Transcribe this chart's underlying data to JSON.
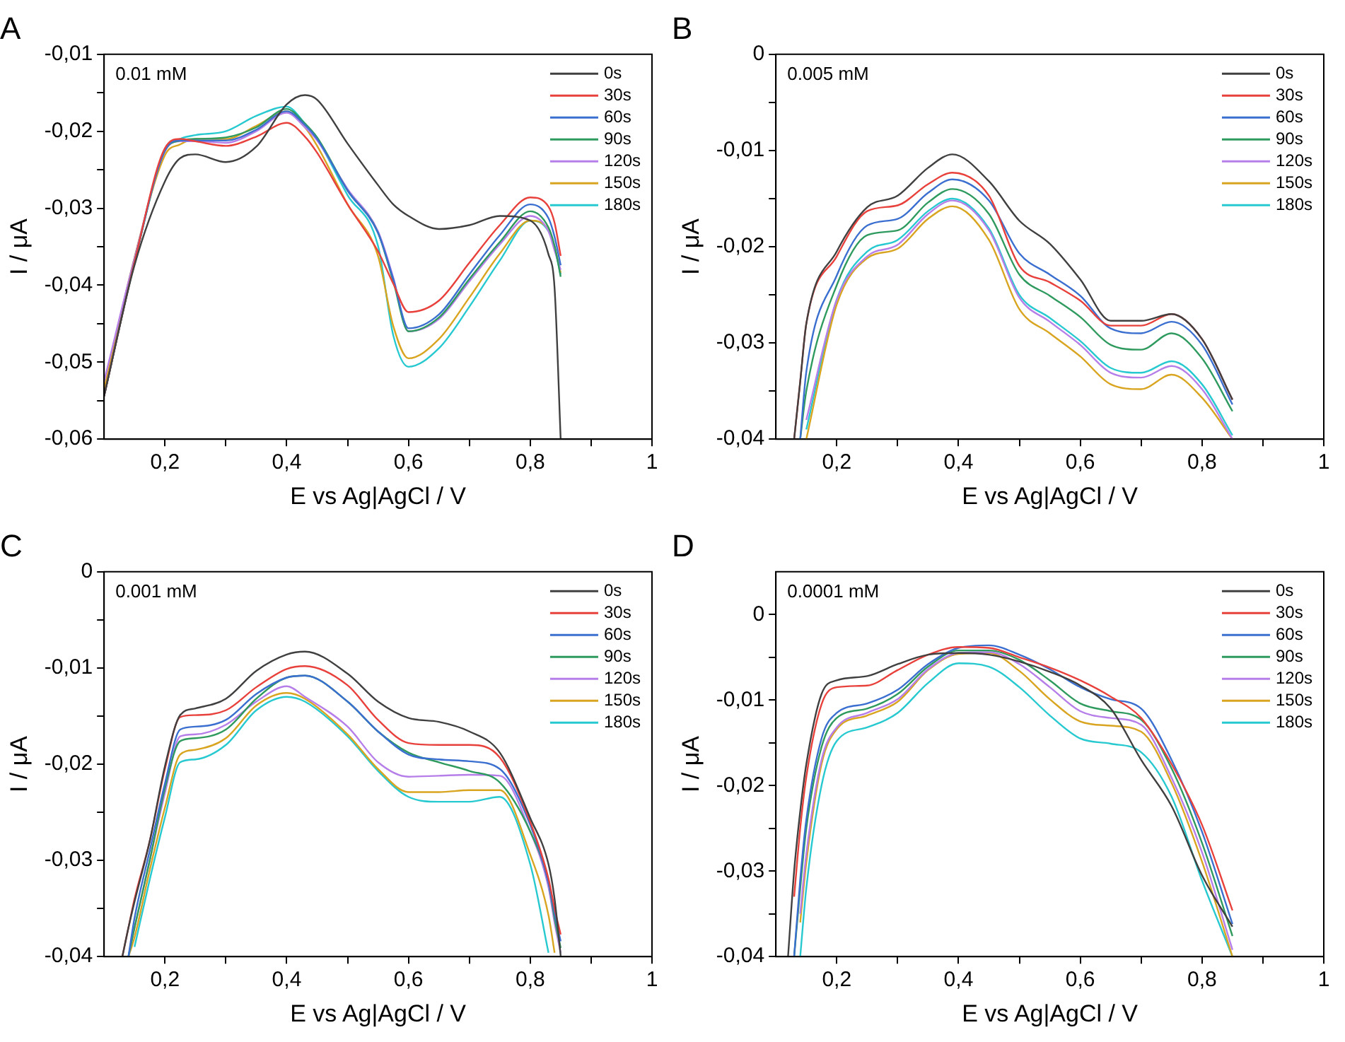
{
  "chart_data": [
    {
      "type": "line",
      "title": "A",
      "xlabel": "E vs Ag|AgCl / V",
      "ylabel": "I / μA",
      "annotations": [
        "0.01 mM"
      ],
      "legend": "top right",
      "grid": false,
      "marker": "none",
      "line_style": "solid",
      "xlim": [
        0.1,
        1
      ],
      "xticks": [
        {
          "value": 0.2,
          "label": "0,2"
        },
        {
          "value": 0.3,
          "label": null
        },
        {
          "value": 0.4,
          "label": "0,4"
        },
        {
          "value": 0.5,
          "label": null
        },
        {
          "value": 0.6,
          "label": "0,6"
        },
        {
          "value": 0.7,
          "label": null
        },
        {
          "value": 0.8,
          "label": "0,8"
        },
        {
          "value": 0.9,
          "label": null
        },
        {
          "value": 1,
          "label": "1"
        }
      ],
      "ylim": [
        -0.06,
        -0.01
      ],
      "yticks": [
        {
          "value": -0.06,
          "label": "-0,06"
        },
        {
          "value": -0.055,
          "label": null
        },
        {
          "value": -0.05,
          "label": "-0,05"
        },
        {
          "value": -0.045,
          "label": null
        },
        {
          "value": -0.04,
          "label": "-0,04"
        },
        {
          "value": -0.035,
          "label": null
        },
        {
          "value": -0.03,
          "label": "-0,03"
        },
        {
          "value": -0.025,
          "label": null
        },
        {
          "value": -0.02,
          "label": "-0,02"
        },
        {
          "value": -0.015,
          "label": null
        },
        {
          "value": -0.01,
          "label": "-0,01"
        }
      ],
      "x": [
        0.1,
        0.15,
        0.2,
        0.225,
        0.25,
        0.3,
        0.35,
        0.4,
        0.43,
        0.45,
        0.5,
        0.55,
        0.575,
        0.6,
        0.65,
        0.7,
        0.75,
        0.8,
        0.83,
        0.84,
        0.85
      ],
      "series": [
        {
          "name": "0s",
          "color": "#404040",
          "values": [
            -0.0544,
            -0.0374,
            -0.0265,
            -0.0235,
            -0.023,
            -0.024,
            -0.022,
            -0.0165,
            -0.0153,
            -0.0159,
            -0.0216,
            -0.027,
            -0.0295,
            -0.031,
            -0.0327,
            -0.0322,
            -0.031,
            -0.0316,
            -0.036,
            -0.0404,
            -0.06
          ]
        },
        {
          "name": "30s",
          "color": "#e8413c",
          "values": [
            -0.0544,
            -0.037,
            -0.0222,
            -0.021,
            -0.0213,
            -0.0219,
            -0.0207,
            -0.0189,
            -0.0207,
            -0.0228,
            -0.0295,
            -0.0356,
            -0.0398,
            -0.0435,
            -0.042,
            -0.0371,
            -0.0322,
            -0.0286,
            -0.0298,
            -0.0319,
            -0.0362
          ]
        },
        {
          "name": "60s",
          "color": "#3a6fd0",
          "values": [
            -0.0544,
            -0.037,
            -0.0225,
            -0.0212,
            -0.0212,
            -0.0212,
            -0.0198,
            -0.0174,
            -0.0192,
            -0.021,
            -0.0277,
            -0.0332,
            -0.0392,
            -0.0456,
            -0.0438,
            -0.0386,
            -0.0335,
            -0.0295,
            -0.0313,
            -0.0337,
            -0.0374
          ]
        },
        {
          "name": "90s",
          "color": "#2e9a5e",
          "values": [
            -0.0544,
            -0.037,
            -0.0225,
            -0.0212,
            -0.021,
            -0.0208,
            -0.0195,
            -0.0171,
            -0.019,
            -0.0208,
            -0.0277,
            -0.0332,
            -0.0395,
            -0.046,
            -0.0442,
            -0.0392,
            -0.0344,
            -0.0304,
            -0.0325,
            -0.0349,
            -0.0389
          ]
        },
        {
          "name": "120s",
          "color": "#b67ee8",
          "values": [
            -0.0525,
            -0.0365,
            -0.0226,
            -0.0213,
            -0.0213,
            -0.0215,
            -0.02,
            -0.0176,
            -0.0195,
            -0.0212,
            -0.0275,
            -0.033,
            -0.039,
            -0.046,
            -0.0444,
            -0.0395,
            -0.0347,
            -0.031,
            -0.033,
            -0.0355,
            -0.038
          ]
        },
        {
          "name": "150s",
          "color": "#d9a520",
          "values": [
            -0.0535,
            -0.0364,
            -0.0231,
            -0.0217,
            -0.021,
            -0.021,
            -0.0193,
            -0.0174,
            -0.0195,
            -0.0219,
            -0.0295,
            -0.0362,
            -0.0453,
            -0.0495,
            -0.047,
            -0.0416,
            -0.0359,
            -0.0316,
            -0.0328,
            -0.035,
            -0.0384
          ]
        },
        {
          "name": "180s",
          "color": "#27c9d0",
          "values": [
            -0.0544,
            -0.037,
            -0.0225,
            -0.021,
            -0.0205,
            -0.02,
            -0.018,
            -0.0168,
            -0.019,
            -0.021,
            -0.0283,
            -0.0349,
            -0.0465,
            -0.0506,
            -0.0482,
            -0.0428,
            -0.0368,
            -0.0316,
            -0.033,
            -0.0352,
            -0.0386
          ]
        }
      ]
    },
    {
      "type": "line",
      "title": "B",
      "xlabel": "E vs Ag|AgCl / V",
      "ylabel": "I / μA",
      "annotations": [
        "0.005 mM"
      ],
      "legend": "top right",
      "grid": false,
      "marker": "none",
      "line_style": "solid",
      "xlim": [
        0.1,
        1
      ],
      "xticks": [
        {
          "value": 0.2,
          "label": "0,2"
        },
        {
          "value": 0.3,
          "label": null
        },
        {
          "value": 0.4,
          "label": "0,4"
        },
        {
          "value": 0.5,
          "label": null
        },
        {
          "value": 0.6,
          "label": "0,6"
        },
        {
          "value": 0.7,
          "label": null
        },
        {
          "value": 0.8,
          "label": "0,8"
        },
        {
          "value": 0.9,
          "label": null
        },
        {
          "value": 1,
          "label": "1"
        }
      ],
      "ylim": [
        -0.04,
        0
      ],
      "yticks": [
        {
          "value": -0.04,
          "label": "-0,04"
        },
        {
          "value": -0.035,
          "label": null
        },
        {
          "value": -0.03,
          "label": "-0,03"
        },
        {
          "value": -0.025,
          "label": null
        },
        {
          "value": -0.02,
          "label": "-0,02"
        },
        {
          "value": -0.015,
          "label": null
        },
        {
          "value": -0.01,
          "label": "-0,01"
        },
        {
          "value": -0.005,
          "label": null
        },
        {
          "value": 0,
          "label": "0"
        }
      ],
      "x": [
        0.13,
        0.14,
        0.15,
        0.2,
        0.25,
        0.3,
        0.35,
        0.39,
        0.45,
        0.5,
        0.55,
        0.6,
        0.65,
        0.7,
        0.75,
        0.8,
        0.85
      ],
      "series": [
        {
          "name": "0s",
          "color": "#404040",
          "values": [
            -0.04,
            -0.034,
            -0.028,
            -0.0205,
            -0.0159,
            -0.0147,
            -0.0118,
            -0.0104,
            -0.0132,
            -0.0173,
            -0.0197,
            -0.0234,
            -0.0277,
            -0.0277,
            -0.027,
            -0.0296,
            -0.0359
          ]
        },
        {
          "name": "30s",
          "color": "#e8413c",
          "values": [
            -0.04,
            -0.034,
            -0.028,
            -0.021,
            -0.0163,
            -0.0157,
            -0.0135,
            -0.0123,
            -0.0147,
            -0.022,
            -0.0237,
            -0.0256,
            -0.0282,
            -0.0282,
            -0.027,
            -0.0296,
            -0.0359
          ]
        },
        {
          "name": "60s",
          "color": "#3a6fd0",
          "values": [
            null,
            -0.04,
            -0.033,
            -0.023,
            -0.0178,
            -0.0171,
            -0.0144,
            -0.013,
            -0.0152,
            -0.0207,
            -0.0229,
            -0.0251,
            -0.0285,
            -0.029,
            -0.0278,
            -0.0302,
            -0.0364
          ]
        },
        {
          "name": "90s",
          "color": "#2e9a5e",
          "values": [
            null,
            -0.04,
            -0.035,
            -0.024,
            -0.0188,
            -0.0183,
            -0.0154,
            -0.014,
            -0.0166,
            -0.0229,
            -0.0251,
            -0.0273,
            -0.0302,
            -0.0307,
            -0.029,
            -0.0316,
            -0.0371
          ]
        },
        {
          "name": "120s",
          "color": "#b67ee8",
          "values": [
            null,
            null,
            -0.038,
            -0.0255,
            -0.021,
            -0.0198,
            -0.0166,
            -0.0152,
            -0.0183,
            -0.0253,
            -0.0278,
            -0.0302,
            -0.0331,
            -0.0336,
            -0.0324,
            -0.0348,
            -0.04
          ]
        },
        {
          "name": "150s",
          "color": "#d9a520",
          "values": [
            null,
            null,
            -0.04,
            -0.026,
            -0.0212,
            -0.0202,
            -0.0171,
            -0.0158,
            -0.0193,
            -0.0265,
            -0.029,
            -0.0314,
            -0.0343,
            -0.0348,
            -0.0333,
            -0.0357,
            -0.04
          ]
        },
        {
          "name": "180s",
          "color": "#27c9d0",
          "values": [
            null,
            null,
            -0.039,
            -0.0255,
            -0.0205,
            -0.0193,
            -0.0163,
            -0.015,
            -0.0181,
            -0.025,
            -0.0274,
            -0.0298,
            -0.0326,
            -0.0331,
            -0.0319,
            -0.0343,
            -0.0396
          ]
        }
      ]
    },
    {
      "type": "line",
      "title": "C",
      "xlabel": "E vs Ag|AgCl / V",
      "ylabel": "I / μA",
      "annotations": [
        "0.001 mM"
      ],
      "legend": "top right",
      "grid": false,
      "marker": "none",
      "line_style": "solid",
      "xlim": [
        0.1,
        1
      ],
      "xticks": [
        {
          "value": 0.2,
          "label": "0,2"
        },
        {
          "value": 0.3,
          "label": null
        },
        {
          "value": 0.4,
          "label": "0,4"
        },
        {
          "value": 0.5,
          "label": null
        },
        {
          "value": 0.6,
          "label": "0,6"
        },
        {
          "value": 0.7,
          "label": null
        },
        {
          "value": 0.8,
          "label": "0,8"
        },
        {
          "value": 0.9,
          "label": null
        },
        {
          "value": 1,
          "label": "1"
        }
      ],
      "ylim": [
        -0.04,
        0
      ],
      "yticks": [
        {
          "value": -0.04,
          "label": "-0,04"
        },
        {
          "value": -0.035,
          "label": null
        },
        {
          "value": -0.03,
          "label": "-0,03"
        },
        {
          "value": -0.025,
          "label": null
        },
        {
          "value": -0.02,
          "label": "-0,02"
        },
        {
          "value": -0.015,
          "label": null
        },
        {
          "value": -0.01,
          "label": "-0,01"
        },
        {
          "value": -0.005,
          "label": null
        },
        {
          "value": 0,
          "label": "0"
        }
      ],
      "x": [
        0.13,
        0.14,
        0.15,
        0.175,
        0.2,
        0.225,
        0.25,
        0.3,
        0.35,
        0.4,
        0.43,
        0.5,
        0.55,
        0.6,
        0.65,
        0.7,
        0.75,
        0.8,
        0.83,
        0.84,
        0.85
      ],
      "series": [
        {
          "name": "0s",
          "color": "#404040",
          "values": [
            -0.04,
            -0.037,
            -0.0343,
            -0.028,
            -0.0202,
            -0.0149,
            -0.0142,
            -0.0132,
            -0.0103,
            -0.0086,
            -0.0083,
            -0.0106,
            -0.0135,
            -0.0152,
            -0.0156,
            -0.0166,
            -0.0188,
            -0.0256,
            -0.0304,
            -0.034,
            -0.0399
          ]
        },
        {
          "name": "30s",
          "color": "#e8413c",
          "values": [
            -0.04,
            -0.037,
            -0.034,
            -0.028,
            -0.0205,
            -0.0151,
            -0.0149,
            -0.0144,
            -0.012,
            -0.0101,
            -0.0098,
            -0.0118,
            -0.0154,
            -0.0178,
            -0.018,
            -0.018,
            -0.0193,
            -0.026,
            -0.0319,
            -0.035,
            -0.0377
          ]
        },
        {
          "name": "60s",
          "color": "#3a6fd0",
          "values": [
            null,
            -0.04,
            -0.036,
            -0.029,
            -0.022,
            -0.0164,
            -0.0161,
            -0.0154,
            -0.0127,
            -0.011,
            -0.0108,
            -0.0135,
            -0.0166,
            -0.019,
            -0.0195,
            -0.0197,
            -0.0205,
            -0.0263,
            -0.0323,
            -0.0355,
            -0.0384
          ]
        },
        {
          "name": "90s",
          "color": "#2e9a5e",
          "values": [
            null,
            -0.04,
            -0.037,
            -0.03,
            -0.0225,
            -0.0176,
            -0.0173,
            -0.0164,
            -0.0132,
            -0.011,
            -0.0108,
            -0.0135,
            -0.0166,
            -0.0188,
            -0.0198,
            -0.0207,
            -0.0219,
            -0.027,
            -0.0323,
            -0.036,
            -0.0391
          ]
        },
        {
          "name": "120s",
          "color": "#b67ee8",
          "values": [
            null,
            -0.04,
            -0.037,
            -0.03,
            -0.023,
            -0.0171,
            -0.0169,
            -0.0159,
            -0.0135,
            -0.0119,
            -0.013,
            -0.0161,
            -0.0198,
            -0.0213,
            -0.0212,
            -0.0211,
            -0.0212,
            -0.027,
            -0.0328,
            -0.0365,
            -0.0396
          ]
        },
        {
          "name": "150s",
          "color": "#d9a520",
          "values": [
            null,
            -0.04,
            -0.038,
            -0.031,
            -0.0245,
            -0.019,
            -0.0185,
            -0.0173,
            -0.0139,
            -0.0126,
            -0.0132,
            -0.0169,
            -0.0205,
            -0.0229,
            -0.0229,
            -0.0227,
            -0.0227,
            -0.0294,
            -0.0357,
            -0.0396,
            null
          ]
        },
        {
          "name": "180s",
          "color": "#27c9d0",
          "values": [
            null,
            null,
            -0.039,
            -0.032,
            -0.0255,
            -0.0198,
            -0.0195,
            -0.018,
            -0.0144,
            -0.013,
            -0.0135,
            -0.0171,
            -0.0207,
            -0.0234,
            -0.0239,
            -0.0239,
            -0.0234,
            -0.0304,
            -0.0396,
            null,
            null
          ]
        }
      ]
    },
    {
      "type": "line",
      "title": "D",
      "xlabel": "E vs Ag|AgCl / V",
      "ylabel": "I / μA",
      "annotations": [
        "0.0001 mM"
      ],
      "legend": "top right",
      "grid": false,
      "marker": "none",
      "line_style": "solid",
      "xlim": [
        0.1,
        1
      ],
      "xticks": [
        {
          "value": 0.2,
          "label": "0,2"
        },
        {
          "value": 0.3,
          "label": null
        },
        {
          "value": 0.4,
          "label": "0,4"
        },
        {
          "value": 0.5,
          "label": null
        },
        {
          "value": 0.6,
          "label": "0,6"
        },
        {
          "value": 0.7,
          "label": null
        },
        {
          "value": 0.8,
          "label": "0,8"
        },
        {
          "value": 0.9,
          "label": null
        },
        {
          "value": 1,
          "label": "1"
        }
      ],
      "ylim": [
        -0.04,
        0.005
      ],
      "yticks": [
        {
          "value": -0.04,
          "label": "-0,04"
        },
        {
          "value": -0.035,
          "label": null
        },
        {
          "value": -0.03,
          "label": "-0,03"
        },
        {
          "value": -0.025,
          "label": null
        },
        {
          "value": -0.02,
          "label": "-0,02"
        },
        {
          "value": -0.015,
          "label": null
        },
        {
          "value": -0.01,
          "label": "-0,01"
        },
        {
          "value": -0.005,
          "label": null
        },
        {
          "value": 0,
          "label": "0"
        }
      ],
      "x": [
        0.12,
        0.13,
        0.14,
        0.15,
        0.175,
        0.2,
        0.25,
        0.3,
        0.35,
        0.4,
        0.45,
        0.5,
        0.55,
        0.6,
        0.65,
        0.7,
        0.75,
        0.8,
        0.85
      ],
      "series": [
        {
          "name": "0s",
          "color": "#404040",
          "values": [
            -0.04,
            -0.03,
            -0.023,
            -0.0175,
            -0.0093,
            -0.0077,
            -0.0072,
            -0.0058,
            -0.0047,
            -0.0045,
            -0.0047,
            -0.0055,
            -0.0067,
            -0.0083,
            -0.011,
            -0.017,
            -0.0224,
            -0.0305,
            -0.0365
          ]
        },
        {
          "name": "30s",
          "color": "#e8413c",
          "values": [
            null,
            -0.033,
            -0.025,
            -0.019,
            -0.0105,
            -0.0085,
            -0.0083,
            -0.0065,
            -0.0047,
            -0.0038,
            -0.0039,
            -0.005,
            -0.0062,
            -0.0077,
            -0.0096,
            -0.0121,
            -0.0175,
            -0.0246,
            -0.0346
          ]
        },
        {
          "name": "60s",
          "color": "#3a6fd0",
          "values": [
            null,
            -0.04,
            -0.031,
            -0.024,
            -0.0145,
            -0.0115,
            -0.0104,
            -0.0088,
            -0.0058,
            -0.0039,
            -0.0036,
            -0.0047,
            -0.0064,
            -0.0085,
            -0.0099,
            -0.011,
            -0.017,
            -0.0254,
            -0.0362
          ]
        },
        {
          "name": "90s",
          "color": "#2e9a5e",
          "values": [
            null,
            -0.04,
            -0.032,
            -0.025,
            -0.0155,
            -0.0121,
            -0.011,
            -0.0093,
            -0.0061,
            -0.0042,
            -0.0042,
            -0.0053,
            -0.0077,
            -0.0104,
            -0.0113,
            -0.0123,
            -0.018,
            -0.0267,
            -0.0376
          ]
        },
        {
          "name": "120s",
          "color": "#b67ee8",
          "values": [
            null,
            null,
            -0.035,
            -0.028,
            -0.017,
            -0.0132,
            -0.0115,
            -0.0099,
            -0.0064,
            -0.0045,
            -0.0044,
            -0.0058,
            -0.0085,
            -0.0113,
            -0.0121,
            -0.0129,
            -0.0191,
            -0.0278,
            -0.0392
          ]
        },
        {
          "name": "150s",
          "color": "#d9a520",
          "values": [
            null,
            null,
            -0.036,
            -0.029,
            -0.0175,
            -0.0134,
            -0.0118,
            -0.0102,
            -0.0065,
            -0.0046,
            -0.0045,
            -0.0066,
            -0.0099,
            -0.0125,
            -0.013,
            -0.0137,
            -0.0197,
            -0.0289,
            -0.04
          ]
        },
        {
          "name": "180s",
          "color": "#27c9d0",
          "values": [
            null,
            null,
            -0.04,
            -0.032,
            -0.02,
            -0.0148,
            -0.0132,
            -0.0115,
            -0.008,
            -0.0057,
            -0.0061,
            -0.0085,
            -0.0118,
            -0.0145,
            -0.0151,
            -0.0161,
            -0.0213,
            -0.0311,
            -0.04
          ]
        }
      ]
    }
  ]
}
